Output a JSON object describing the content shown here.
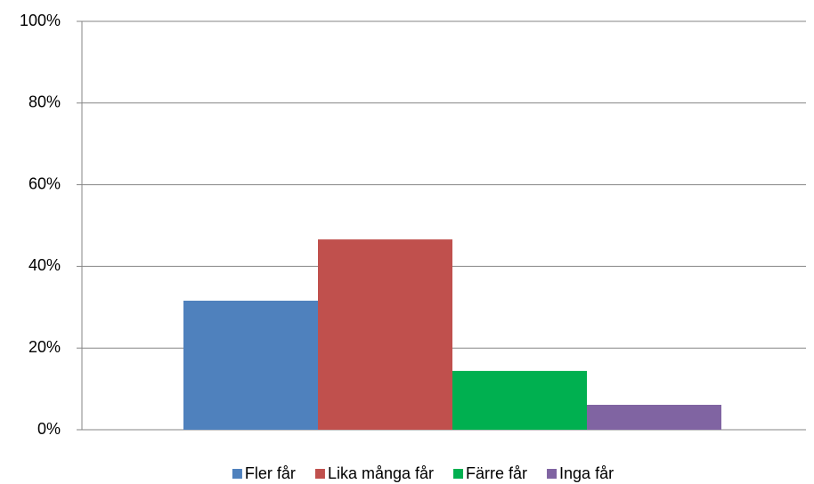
{
  "chart_data": {
    "type": "bar",
    "series": [
      {
        "name": "Fler får",
        "color": "#4f81bd",
        "values": [
          31.6
        ]
      },
      {
        "name": "Lika många får",
        "color": "#c0504d",
        "values": [
          46.6
        ]
      },
      {
        "name": "Färre får",
        "color": "#00b050",
        "values": [
          14.4
        ]
      },
      {
        "name": "Inga får",
        "color": "#8064a2",
        "values": [
          6.1
        ]
      }
    ],
    "ylim": [
      0,
      100
    ],
    "yticks": [
      {
        "value": 0,
        "label": "0%"
      },
      {
        "value": 20,
        "label": "20%"
      },
      {
        "value": 40,
        "label": "40%"
      },
      {
        "value": 60,
        "label": "60%"
      },
      {
        "value": 80,
        "label": "80%"
      },
      {
        "value": 100,
        "label": "100%"
      }
    ],
    "grid": true,
    "legend": "bottom"
  }
}
